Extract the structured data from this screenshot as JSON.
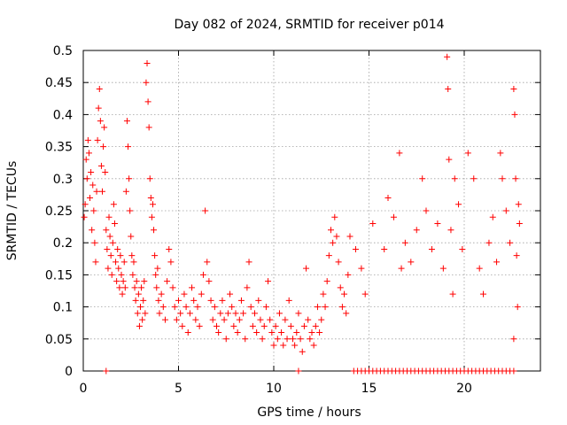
{
  "chart_data": {
    "type": "scatter",
    "title": "Day 082 of 2024, SRMTID for receiver p014",
    "xlabel": "GPS time / hours",
    "ylabel": "SRMTID / TECUs",
    "xlim": [
      0,
      24
    ],
    "ylim": [
      0,
      0.5
    ],
    "x_ticks": [
      0,
      5,
      10,
      15,
      20
    ],
    "x_tick_labels": [
      "0",
      "5",
      "10",
      "15",
      "20"
    ],
    "y_ticks": [
      0,
      0.05,
      0.1,
      0.15,
      0.2,
      0.25,
      0.3,
      0.35,
      0.4,
      0.45,
      0.5
    ],
    "y_tick_labels": [
      "0",
      "0.05",
      "0.1",
      "0.15",
      "0.2",
      "0.25",
      "0.3",
      "0.35",
      "0.4",
      "0.45",
      "0.5"
    ],
    "grid": true,
    "marker": "+",
    "point_color": "#ff0000",
    "series": [
      {
        "name": "SRMTID",
        "points": [
          [
            0.05,
            0.24
          ],
          [
            0.1,
            0.26
          ],
          [
            0.15,
            0.33
          ],
          [
            0.2,
            0.3
          ],
          [
            0.25,
            0.36
          ],
          [
            0.3,
            0.34
          ],
          [
            0.35,
            0.27
          ],
          [
            0.4,
            0.31
          ],
          [
            0.45,
            0.22
          ],
          [
            0.5,
            0.29
          ],
          [
            0.55,
            0.25
          ],
          [
            0.6,
            0.2
          ],
          [
            0.65,
            0.17
          ],
          [
            0.7,
            0.28
          ],
          [
            0.75,
            0.36
          ],
          [
            0.8,
            0.41
          ],
          [
            0.85,
            0.44
          ],
          [
            0.9,
            0.39
          ],
          [
            0.95,
            0.32
          ],
          [
            1.0,
            0.28
          ],
          [
            1.05,
            0.35
          ],
          [
            1.1,
            0.38
          ],
          [
            1.15,
            0.31
          ],
          [
            1.2,
            0.22
          ],
          [
            1.25,
            0.19
          ],
          [
            1.3,
            0.16
          ],
          [
            1.35,
            0.24
          ],
          [
            1.4,
            0.21
          ],
          [
            1.45,
            0.18
          ],
          [
            1.5,
            0.15
          ],
          [
            1.55,
            0.2
          ],
          [
            1.6,
            0.26
          ],
          [
            1.65,
            0.23
          ],
          [
            1.7,
            0.17
          ],
          [
            1.75,
            0.14
          ],
          [
            1.8,
            0.19
          ],
          [
            1.85,
            0.16
          ],
          [
            1.9,
            0.13
          ],
          [
            1.95,
            0.18
          ],
          [
            2.0,
            0.15
          ],
          [
            2.05,
            0.12
          ],
          [
            2.1,
            0.14
          ],
          [
            2.15,
            0.17
          ],
          [
            2.2,
            0.13
          ],
          [
            2.25,
            0.28
          ],
          [
            2.3,
            0.39
          ],
          [
            2.35,
            0.35
          ],
          [
            2.4,
            0.3
          ],
          [
            2.45,
            0.25
          ],
          [
            2.5,
            0.21
          ],
          [
            2.55,
            0.18
          ],
          [
            2.6,
            0.15
          ],
          [
            2.65,
            0.17
          ],
          [
            2.7,
            0.13
          ],
          [
            2.75,
            0.11
          ],
          [
            2.8,
            0.14
          ],
          [
            2.85,
            0.09
          ],
          [
            2.9,
            0.12
          ],
          [
            2.95,
            0.07
          ],
          [
            3.0,
            0.1
          ],
          [
            3.05,
            0.13
          ],
          [
            3.1,
            0.08
          ],
          [
            3.15,
            0.11
          ],
          [
            3.2,
            0.14
          ],
          [
            3.25,
            0.09
          ],
          [
            3.3,
            0.45
          ],
          [
            3.35,
            0.48
          ],
          [
            3.4,
            0.42
          ],
          [
            3.45,
            0.38
          ],
          [
            3.5,
            0.3
          ],
          [
            3.55,
            0.27
          ],
          [
            3.6,
            0.24
          ],
          [
            3.65,
            0.26
          ],
          [
            3.7,
            0.22
          ],
          [
            3.75,
            0.18
          ],
          [
            3.8,
            0.15
          ],
          [
            3.85,
            0.13
          ],
          [
            3.9,
            0.16
          ],
          [
            3.95,
            0.11
          ],
          [
            4.0,
            0.09
          ],
          [
            4.1,
            0.12
          ],
          [
            4.2,
            0.1
          ],
          [
            4.3,
            0.08
          ],
          [
            4.4,
            0.14
          ],
          [
            4.5,
            0.19
          ],
          [
            4.6,
            0.17
          ],
          [
            4.7,
            0.13
          ],
          [
            4.8,
            0.1
          ],
          [
            4.9,
            0.08
          ],
          [
            5.0,
            0.11
          ],
          [
            5.1,
            0.09
          ],
          [
            5.2,
            0.07
          ],
          [
            5.3,
            0.12
          ],
          [
            5.4,
            0.1
          ],
          [
            5.5,
            0.06
          ],
          [
            5.6,
            0.09
          ],
          [
            5.7,
            0.13
          ],
          [
            5.8,
            0.11
          ],
          [
            5.9,
            0.08
          ],
          [
            6.0,
            0.1
          ],
          [
            6.1,
            0.07
          ],
          [
            6.2,
            0.12
          ],
          [
            6.3,
            0.15
          ],
          [
            6.4,
            0.25
          ],
          [
            6.5,
            0.17
          ],
          [
            6.6,
            0.14
          ],
          [
            6.7,
            0.11
          ],
          [
            6.8,
            0.08
          ],
          [
            6.9,
            0.1
          ],
          [
            7.0,
            0.07
          ],
          [
            7.1,
            0.06
          ],
          [
            7.2,
            0.09
          ],
          [
            7.3,
            0.11
          ],
          [
            7.4,
            0.08
          ],
          [
            7.5,
            0.05
          ],
          [
            7.6,
            0.09
          ],
          [
            7.7,
            0.12
          ],
          [
            7.8,
            0.1
          ],
          [
            7.9,
            0.07
          ],
          [
            8.0,
            0.09
          ],
          [
            8.1,
            0.06
          ],
          [
            8.2,
            0.08
          ],
          [
            8.3,
            0.11
          ],
          [
            8.4,
            0.09
          ],
          [
            8.5,
            0.05
          ],
          [
            8.6,
            0.13
          ],
          [
            8.7,
            0.17
          ],
          [
            8.8,
            0.1
          ],
          [
            8.9,
            0.07
          ],
          [
            9.0,
            0.09
          ],
          [
            9.1,
            0.06
          ],
          [
            9.2,
            0.11
          ],
          [
            9.3,
            0.08
          ],
          [
            9.4,
            0.05
          ],
          [
            9.5,
            0.07
          ],
          [
            9.6,
            0.1
          ],
          [
            9.7,
            0.14
          ],
          [
            9.8,
            0.08
          ],
          [
            9.9,
            0.06
          ],
          [
            10.0,
            0.04
          ],
          [
            10.1,
            0.07
          ],
          [
            10.2,
            0.05
          ],
          [
            10.3,
            0.09
          ],
          [
            10.4,
            0.06
          ],
          [
            10.5,
            0.04
          ],
          [
            10.6,
            0.08
          ],
          [
            10.7,
            0.05
          ],
          [
            10.8,
            0.11
          ],
          [
            10.9,
            0.07
          ],
          [
            11.0,
            0.05
          ],
          [
            11.1,
            0.04
          ],
          [
            11.2,
            0.06
          ],
          [
            11.3,
            0.09
          ],
          [
            11.4,
            0.05
          ],
          [
            11.5,
            0.03
          ],
          [
            11.6,
            0.07
          ],
          [
            11.7,
            0.16
          ],
          [
            11.8,
            0.08
          ],
          [
            11.9,
            0.05
          ],
          [
            12.0,
            0.06
          ],
          [
            12.1,
            0.04
          ],
          [
            12.2,
            0.07
          ],
          [
            12.3,
            0.1
          ],
          [
            12.4,
            0.06
          ],
          [
            12.5,
            0.08
          ],
          [
            12.6,
            0.12
          ],
          [
            12.7,
            0.1
          ],
          [
            12.8,
            0.14
          ],
          [
            12.9,
            0.18
          ],
          [
            13.0,
            0.22
          ],
          [
            13.1,
            0.2
          ],
          [
            13.2,
            0.24
          ],
          [
            13.3,
            0.21
          ],
          [
            13.4,
            0.17
          ],
          [
            13.5,
            0.13
          ],
          [
            13.6,
            0.1
          ],
          [
            13.7,
            0.12
          ],
          [
            13.8,
            0.09
          ],
          [
            13.9,
            0.15
          ],
          [
            14.0,
            0.21
          ],
          [
            14.3,
            0.19
          ],
          [
            14.6,
            0.16
          ],
          [
            14.8,
            0.12
          ],
          [
            15.2,
            0.23
          ],
          [
            15.8,
            0.19
          ],
          [
            16.0,
            0.27
          ],
          [
            16.3,
            0.24
          ],
          [
            16.6,
            0.34
          ],
          [
            16.7,
            0.16
          ],
          [
            16.9,
            0.2
          ],
          [
            17.2,
            0.17
          ],
          [
            17.5,
            0.22
          ],
          [
            17.8,
            0.3
          ],
          [
            18.0,
            0.25
          ],
          [
            18.3,
            0.19
          ],
          [
            18.6,
            0.23
          ],
          [
            18.9,
            0.16
          ],
          [
            19.1,
            0.49
          ],
          [
            19.15,
            0.44
          ],
          [
            19.2,
            0.33
          ],
          [
            19.3,
            0.22
          ],
          [
            19.4,
            0.12
          ],
          [
            19.5,
            0.3
          ],
          [
            19.7,
            0.26
          ],
          [
            19.9,
            0.19
          ],
          [
            20.2,
            0.34
          ],
          [
            20.5,
            0.3
          ],
          [
            20.8,
            0.16
          ],
          [
            21.0,
            0.12
          ],
          [
            21.3,
            0.2
          ],
          [
            21.5,
            0.24
          ],
          [
            21.7,
            0.17
          ],
          [
            21.9,
            0.34
          ],
          [
            22.0,
            0.3
          ],
          [
            22.2,
            0.25
          ],
          [
            22.4,
            0.2
          ],
          [
            22.6,
            0.44
          ],
          [
            22.65,
            0.4
          ],
          [
            22.7,
            0.3
          ],
          [
            22.75,
            0.18
          ],
          [
            22.8,
            0.1
          ],
          [
            22.85,
            0.26
          ],
          [
            22.9,
            0.23
          ],
          [
            22.6,
            0.05
          ],
          [
            1.2,
            0
          ],
          [
            11.3,
            0
          ],
          [
            14.2,
            0
          ],
          [
            14.4,
            0
          ],
          [
            14.6,
            0
          ],
          [
            14.8,
            0
          ],
          [
            15.0,
            0
          ],
          [
            15.2,
            0
          ],
          [
            15.4,
            0
          ],
          [
            15.6,
            0
          ],
          [
            15.8,
            0
          ],
          [
            16.0,
            0
          ],
          [
            16.2,
            0
          ],
          [
            16.4,
            0
          ],
          [
            16.6,
            0
          ],
          [
            16.8,
            0
          ],
          [
            17.0,
            0
          ],
          [
            17.2,
            0
          ],
          [
            17.4,
            0
          ],
          [
            17.6,
            0
          ],
          [
            17.8,
            0
          ],
          [
            18.0,
            0
          ],
          [
            18.2,
            0
          ],
          [
            18.4,
            0
          ],
          [
            18.6,
            0
          ],
          [
            18.8,
            0
          ],
          [
            19.0,
            0
          ],
          [
            19.2,
            0
          ],
          [
            19.4,
            0
          ],
          [
            19.6,
            0
          ],
          [
            19.8,
            0
          ],
          [
            20.0,
            0
          ],
          [
            20.2,
            0
          ],
          [
            20.4,
            0
          ],
          [
            20.6,
            0
          ],
          [
            20.8,
            0
          ],
          [
            21.0,
            0
          ],
          [
            21.2,
            0
          ],
          [
            21.4,
            0
          ],
          [
            21.6,
            0
          ],
          [
            21.8,
            0
          ],
          [
            22.0,
            0
          ],
          [
            22.2,
            0
          ],
          [
            22.4,
            0
          ],
          [
            22.6,
            0
          ]
        ]
      }
    ]
  }
}
